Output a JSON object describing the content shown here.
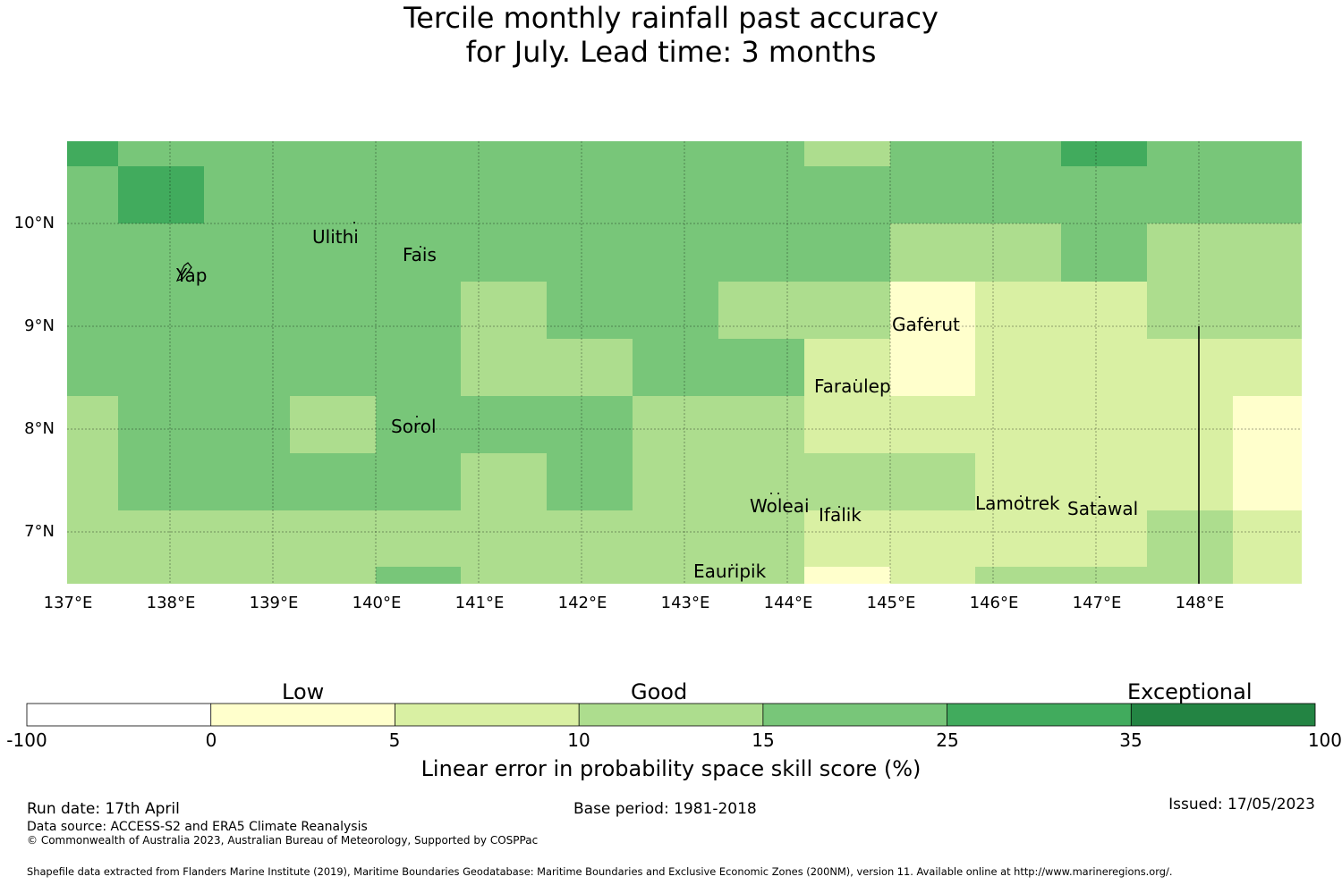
{
  "title": {
    "line1": "Tercile monthly rainfall past accuracy",
    "line2": "for July. Lead time: 3 months"
  },
  "map": {
    "lat_labels": [
      "10°N",
      "9°N",
      "8°N",
      "7°N"
    ],
    "lon_labels": [
      "137°E",
      "138°E",
      "139°E",
      "140°E",
      "141°E",
      "142°E",
      "143°E",
      "144°E",
      "145°E",
      "146°E",
      "147°E",
      "148°E"
    ],
    "places": [
      "Yap",
      "Ulithi",
      "Fais",
      "Gaferut",
      "Faraulep",
      "Sorol",
      "Woleai",
      "Ifalik",
      "Lamotrek",
      "Satawal",
      "Eauripik"
    ],
    "colors": {
      "c1": "#ffffcc",
      "c2": "#d9f0a3",
      "c3": "#addd8e",
      "c4": "#78c679",
      "c5": "#41ab5d",
      "c6": "#238443"
    }
  },
  "colorbar": {
    "category_labels": [
      "Low",
      "Good",
      "Exceptional"
    ],
    "ticks": [
      "-100",
      "0",
      "5",
      "10",
      "15",
      "25",
      "35",
      "100"
    ],
    "colors": [
      "#ffffff",
      "#ffffcc",
      "#d9f0a3",
      "#addd8e",
      "#78c679",
      "#41ab5d",
      "#238443"
    ],
    "label": "Linear error in probability space skill score (%)"
  },
  "footer": {
    "run_date": "Run date: 17th April",
    "base_period": "Base period: 1981-2018",
    "issued": "Issued: 17/05/2023",
    "data_source": "Data source: ACCESS-S2 and ERA5 Climate Reanalysis",
    "copyright": "© Commonwealth of Australia 2023, Australian Bureau of Meteorology, Supported by COSPPac",
    "shapefile": "Shapefile data extracted from Flanders Marine Institute (2019), Maritime Boundaries Geodatabase: Maritime Boundaries and Exclusive Economic Zones (200NM), version 11. Available online at http://www.marineregions.org/."
  }
}
